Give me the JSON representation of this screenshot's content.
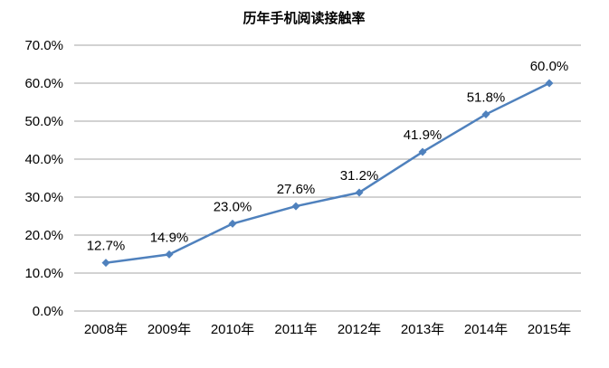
{
  "chart_data": {
    "type": "line",
    "title": "历年手机阅读接触率",
    "xlabel": "",
    "ylabel": "",
    "categories": [
      "2008年",
      "2009年",
      "2010年",
      "2011年",
      "2012年",
      "2013年",
      "2014年",
      "2015年"
    ],
    "series": [
      {
        "values": [
          12.7,
          14.9,
          23.0,
          27.6,
          31.2,
          41.9,
          51.8,
          60.0
        ],
        "data_labels": [
          "12.7%",
          "14.9%",
          "23.0%",
          "27.6%",
          "31.2%",
          "41.9%",
          "51.8%",
          "60.0%"
        ],
        "color": "#4F81BD",
        "marker": "diamond"
      }
    ],
    "ylim": [
      0,
      70
    ],
    "yticks": [
      0,
      10,
      20,
      30,
      40,
      50,
      60,
      70
    ],
    "ytick_labels": [
      "0.0%",
      "10.0%",
      "20.0%",
      "30.0%",
      "40.0%",
      "50.0%",
      "60.0%",
      "70.0%"
    ],
    "grid": true,
    "grid_color": "#a6a6a6",
    "legend": "none"
  }
}
